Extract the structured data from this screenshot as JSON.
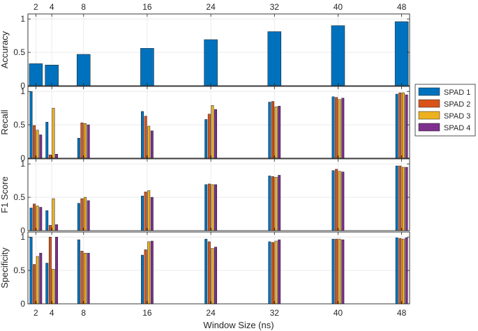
{
  "chart_data": {
    "type": "bar",
    "xlabel": "Window Size (ns)",
    "x": [
      2,
      4,
      8,
      16,
      24,
      32,
      40,
      48
    ],
    "x_ticks": [
      "2",
      "4",
      "8",
      "16",
      "24",
      "32",
      "40",
      "48"
    ],
    "xlim": [
      1,
      49
    ],
    "grid": true,
    "legend": {
      "placement": "outside-right",
      "entries": [
        "SPAD 1",
        "SPAD 2",
        "SPAD 3",
        "SPAD 4"
      ]
    },
    "colors": [
      "#0072BD",
      "#D95319",
      "#EDB120",
      "#7E2F8E"
    ],
    "panels": [
      {
        "ylabel": "Accuracy",
        "ylim": [
          0,
          1
        ],
        "y_ticks": [
          "0",
          "0.5",
          "1"
        ],
        "series": [
          {
            "name": "",
            "values": [
              0.33,
              0.31,
              0.47,
              0.56,
              0.69,
              0.81,
              0.9,
              0.96
            ]
          }
        ]
      },
      {
        "ylabel": "Recall",
        "ylim": [
          0,
          1
        ],
        "y_ticks": [
          "0",
          "0.5",
          "1"
        ],
        "series": [
          {
            "name": "SPAD 1",
            "values": [
              1.0,
              0.54,
              0.3,
              0.7,
              0.58,
              0.84,
              0.92,
              0.96
            ]
          },
          {
            "name": "SPAD 2",
            "values": [
              0.49,
              0.05,
              0.53,
              0.63,
              0.66,
              0.85,
              0.91,
              0.98
            ]
          },
          {
            "name": "SPAD 3",
            "values": [
              0.42,
              0.75,
              0.52,
              0.48,
              0.79,
              0.77,
              0.88,
              0.98
            ]
          },
          {
            "name": "SPAD 4",
            "values": [
              0.35,
              0.06,
              0.5,
              0.41,
              0.73,
              0.78,
              0.9,
              0.95
            ]
          }
        ]
      },
      {
        "ylabel": "F1 Score",
        "ylim": [
          0,
          1
        ],
        "y_ticks": [
          "0",
          "0.5",
          "1"
        ],
        "series": [
          {
            "name": "SPAD 1",
            "values": [
              0.34,
              0.3,
              0.41,
              0.52,
              0.69,
              0.82,
              0.9,
              0.97
            ]
          },
          {
            "name": "SPAD 2",
            "values": [
              0.4,
              0.08,
              0.48,
              0.58,
              0.7,
              0.81,
              0.92,
              0.97
            ]
          },
          {
            "name": "SPAD 3",
            "values": [
              0.37,
              0.48,
              0.5,
              0.6,
              0.69,
              0.8,
              0.89,
              0.95
            ]
          },
          {
            "name": "SPAD 4",
            "values": [
              0.35,
              0.09,
              0.45,
              0.5,
              0.69,
              0.83,
              0.88,
              0.95
            ]
          }
        ]
      },
      {
        "ylabel": "Specificity",
        "ylim": [
          0,
          1
        ],
        "y_ticks": [
          "0",
          "0.5",
          "1"
        ],
        "series": [
          {
            "name": "SPAD 1",
            "values": [
              1.0,
              0.61,
              0.96,
              0.73,
              0.97,
              0.93,
              0.97,
              0.99
            ]
          },
          {
            "name": "SPAD 2",
            "values": [
              0.59,
              1.0,
              0.79,
              0.81,
              0.93,
              0.92,
              0.97,
              0.98
            ]
          },
          {
            "name": "SPAD 3",
            "values": [
              0.71,
              0.52,
              0.76,
              0.93,
              0.83,
              0.94,
              0.97,
              0.97
            ]
          },
          {
            "name": "SPAD 4",
            "values": [
              0.76,
              1.0,
              0.76,
              0.94,
              0.85,
              0.96,
              0.96,
              0.99
            ]
          }
        ]
      }
    ]
  }
}
